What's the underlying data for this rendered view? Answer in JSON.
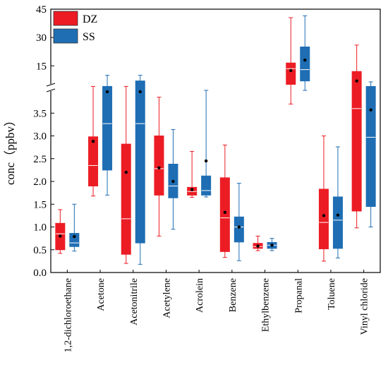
{
  "chart_data": {
    "type": "box",
    "ylabel": "conc（ppbv）",
    "axis_break": {
      "lower_range": [
        0,
        4.0
      ],
      "upper_range": [
        5,
        45
      ]
    },
    "lower_ticks": [
      "0.0",
      "0.5",
      "1.0",
      "1.5",
      "2.0",
      "2.5",
      "3.0",
      "3.5"
    ],
    "upper_ticks": [
      "15",
      "30",
      "45"
    ],
    "legend": {
      "position": "top-left",
      "items": [
        {
          "label": "DZ",
          "color": "#ec1c24"
        },
        {
          "label": "SS",
          "color": "#1f6eb4"
        }
      ]
    },
    "categories": [
      "1,2-dichloroethane",
      "Acetone",
      "Acetonitrile",
      "Acetylene",
      "Acrolein",
      "Benzene",
      "Ethylbenzene",
      "Propanal",
      "Toluene",
      "Vinyl chloride"
    ],
    "series": [
      {
        "name": "DZ",
        "color": "#ec1c24",
        "boxes": [
          {
            "whisker_low": 0.42,
            "q1": 0.5,
            "median": 0.85,
            "q3": 1.08,
            "whisker_high": 1.38,
            "mean": 0.8
          },
          {
            "whisker_low": 1.68,
            "q1": 1.9,
            "median": 2.35,
            "q3": 2.98,
            "whisker_high": 4.1,
            "mean": 2.88
          },
          {
            "whisker_low": 0.2,
            "q1": 0.4,
            "median": 1.18,
            "q3": 2.82,
            "whisker_high": 4.1,
            "mean": 2.2
          },
          {
            "whisker_low": 0.8,
            "q1": 1.7,
            "median": 2.28,
            "q3": 3.0,
            "whisker_high": 3.85,
            "mean": 2.3
          },
          {
            "whisker_low": 1.65,
            "q1": 1.7,
            "median": 1.78,
            "q3": 1.87,
            "whisker_high": 2.66,
            "mean": 1.82
          },
          {
            "whisker_low": 0.33,
            "q1": 0.46,
            "median": 1.2,
            "q3": 2.08,
            "whisker_high": 2.8,
            "mean": 1.32
          },
          {
            "whisker_low": 0.48,
            "q1": 0.53,
            "median": 0.57,
            "q3": 0.64,
            "whisker_high": 0.8,
            "mean": 0.58
          },
          {
            "whisker_low": 3.7,
            "q1": 5.2,
            "median": 13.5,
            "q3": 16.5,
            "whisker_high": 40.5,
            "mean": 12.5
          },
          {
            "whisker_low": 0.25,
            "q1": 0.52,
            "median": 1.1,
            "q3": 1.83,
            "whisker_high": 3.0,
            "mean": 1.25
          },
          {
            "whisker_low": 0.98,
            "q1": 1.35,
            "median": 3.6,
            "q3": 12.0,
            "whisker_high": 26.0,
            "mean": 7.0
          }
        ]
      },
      {
        "name": "SS",
        "color": "#1f6eb4",
        "boxes": [
          {
            "whisker_low": 0.47,
            "q1": 0.57,
            "median": 0.65,
            "q3": 0.86,
            "whisker_high": 1.5,
            "mean": 0.79
          },
          {
            "whisker_low": 1.7,
            "q1": 2.25,
            "median": 3.27,
            "q3": 4.1,
            "whisker_high": 10.0,
            "mean": 3.97
          },
          {
            "whisker_low": 0.18,
            "q1": 0.65,
            "median": 3.27,
            "q3": 7.0,
            "whisker_high": 10.0,
            "mean": 3.97
          },
          {
            "whisker_low": 0.95,
            "q1": 1.64,
            "median": 1.9,
            "q3": 2.38,
            "whisker_high": 3.14,
            "mean": 2.0
          },
          {
            "whisker_low": 1.66,
            "q1": 1.7,
            "median": 1.8,
            "q3": 2.12,
            "whisker_high": 4.0,
            "mean": 2.45
          },
          {
            "whisker_low": 0.26,
            "q1": 0.67,
            "median": 1.0,
            "q3": 1.22,
            "whisker_high": 1.96,
            "mean": 1.0
          },
          {
            "whisker_low": 0.48,
            "q1": 0.53,
            "median": 0.6,
            "q3": 0.66,
            "whisker_high": 0.75,
            "mean": 0.6
          },
          {
            "whisker_low": 4.0,
            "q1": 7.0,
            "median": 13.0,
            "q3": 25.0,
            "whisker_high": 41.5,
            "mean": 18.0
          },
          {
            "whisker_low": 0.32,
            "q1": 0.53,
            "median": 1.15,
            "q3": 1.66,
            "whisker_high": 2.76,
            "mean": 1.26
          },
          {
            "whisker_low": 1.0,
            "q1": 1.45,
            "median": 2.97,
            "q3": 4.1,
            "whisker_high": 6.5,
            "mean": 3.57
          }
        ]
      }
    ]
  }
}
